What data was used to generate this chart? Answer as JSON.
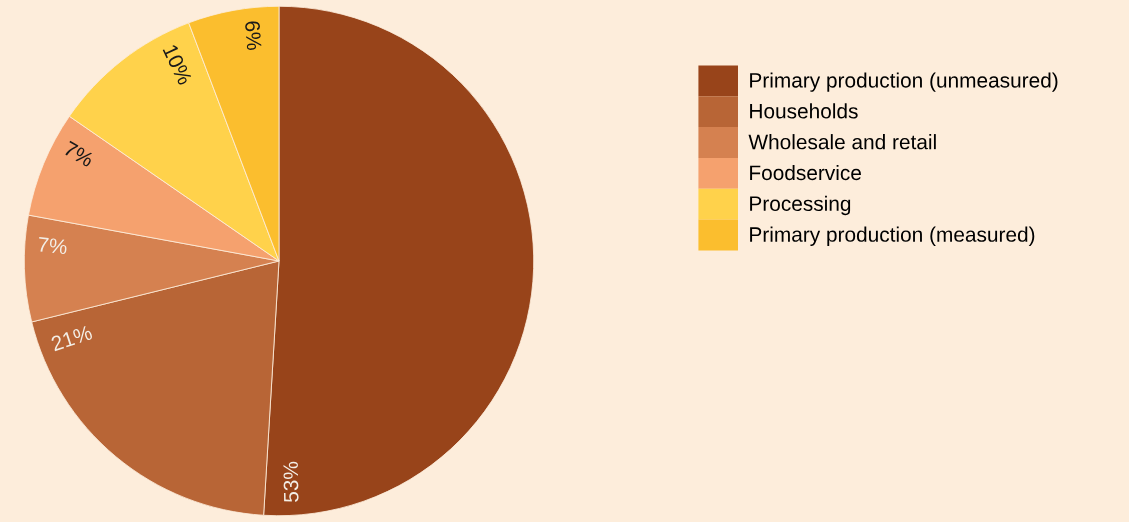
{
  "chart_data": {
    "type": "pie",
    "categories": [
      "Primary production (unmeasured)",
      "Households",
      "Wholesale and retail",
      "Foodservice",
      "Processing",
      "Primary production (measured)"
    ],
    "values": [
      53,
      21,
      7,
      7,
      10,
      6
    ],
    "colors": [
      "#98441a",
      "#b86536",
      "#d58150",
      "#f5a16e",
      "#ffd24b",
      "#fbbe2e"
    ],
    "value_labels": [
      "53%",
      "21%",
      "7%",
      "7%",
      "10%",
      "6%"
    ],
    "legend": "right"
  }
}
